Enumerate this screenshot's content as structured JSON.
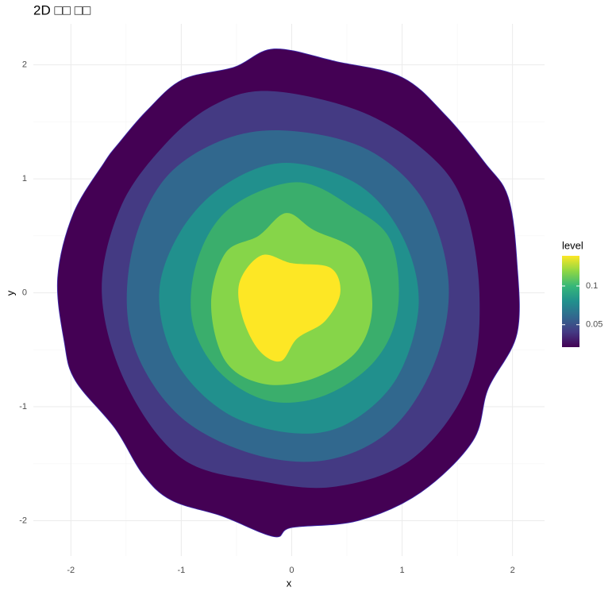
{
  "chart_data": {
    "type": "filled-contour",
    "title": "2D □□ □□",
    "x_label": "x",
    "y_label": "y",
    "xlim": [
      -2.34,
      2.29
    ],
    "ylim": [
      -2.31,
      2.36
    ],
    "xticks": [
      -2,
      -1,
      0,
      1,
      2
    ],
    "yticks": [
      -2,
      -1,
      0,
      1,
      2
    ],
    "minor_xticks": [
      -1.5,
      -0.5,
      0.5,
      1.5
    ],
    "minor_yticks": [
      -1.5,
      -0.5,
      0.5,
      1.5
    ],
    "grid": true,
    "bands": [
      {
        "color": "#440154",
        "x": [
          -0.16,
          0.4,
          1.0,
          1.4,
          1.75,
          1.96,
          2.04,
          2.04,
          1.78,
          1.64,
          1.17,
          0.6,
          0.0,
          -0.16,
          -0.63,
          -1.09,
          -1.35,
          -1.6,
          -1.96,
          -2.06,
          -2.12,
          -1.98,
          -1.7,
          -1.56,
          -1.31,
          -0.99,
          -0.52
        ],
        "y": [
          2.14,
          2.03,
          1.89,
          1.55,
          1.14,
          0.84,
          0.27,
          -0.36,
          -0.84,
          -1.3,
          -1.75,
          -2.0,
          -2.06,
          -2.14,
          -1.96,
          -1.82,
          -1.59,
          -1.19,
          -0.77,
          -0.43,
          0.13,
          0.69,
          1.14,
          1.32,
          1.6,
          1.87,
          1.98
        ]
      },
      {
        "color": "#443a83",
        "x": [
          -0.2,
          0.6,
          1.2,
          1.55,
          1.7,
          1.6,
          1.1,
          0.4,
          -0.3,
          -1.0,
          -1.5,
          -1.72,
          -1.55,
          -1.15,
          -0.7
        ],
        "y": [
          1.77,
          1.6,
          1.25,
          0.8,
          0.0,
          -0.8,
          -1.45,
          -1.7,
          -1.65,
          -1.45,
          -0.8,
          0.0,
          0.75,
          1.3,
          1.65
        ]
      },
      {
        "color": "#31688e",
        "x": [
          0.0,
          0.7,
          1.2,
          1.42,
          1.3,
          0.9,
          0.3,
          -0.4,
          -1.05,
          -1.45,
          -1.45,
          -1.15,
          -0.6
        ],
        "y": [
          1.42,
          1.25,
          0.8,
          0.1,
          -0.6,
          -1.2,
          -1.47,
          -1.4,
          -1.05,
          -0.4,
          0.35,
          1.0,
          1.35
        ]
      },
      {
        "color": "#21908d",
        "x": [
          -0.05,
          0.6,
          1.0,
          1.15,
          0.95,
          0.5,
          0.0,
          -0.6,
          -1.05,
          -1.2,
          -1.0,
          -0.6
        ],
        "y": [
          1.14,
          0.95,
          0.5,
          -0.1,
          -0.75,
          -1.15,
          -1.23,
          -1.05,
          -0.6,
          0.0,
          0.55,
          0.95
        ]
      },
      {
        "color": "#3aae6c",
        "x": [
          0.05,
          0.55,
          0.9,
          0.96,
          0.75,
          0.3,
          -0.2,
          -0.65,
          -0.9,
          -0.85,
          -0.55
        ],
        "y": [
          0.97,
          0.75,
          0.45,
          -0.15,
          -0.6,
          -0.9,
          -0.95,
          -0.7,
          -0.25,
          0.3,
          0.75
        ]
      },
      {
        "color": "#86d549",
        "x": [
          -0.05,
          0.2,
          0.6,
          0.73,
          0.6,
          0.2,
          -0.25,
          -0.6,
          -0.73,
          -0.6,
          -0.3
        ],
        "y": [
          0.7,
          0.55,
          0.35,
          -0.1,
          -0.5,
          -0.75,
          -0.8,
          -0.6,
          -0.1,
          0.35,
          0.5
        ]
      },
      {
        "color": "#fde725",
        "x": [
          -0.27,
          0.0,
          0.35,
          0.44,
          0.3,
          0.05,
          -0.1,
          -0.3,
          -0.45,
          -0.47
        ],
        "y": [
          0.33,
          0.26,
          0.22,
          0.0,
          -0.25,
          -0.4,
          -0.6,
          -0.5,
          -0.2,
          0.1
        ]
      }
    ],
    "legend_title": "level",
    "colorbar_lim": [
      0.021,
      0.139
    ],
    "colorbar_ticks": [
      0.05,
      0.1
    ],
    "colorbar_colors": [
      "#440154",
      "#443a83",
      "#31688e",
      "#21908d",
      "#35b779",
      "#8fd744",
      "#fde725"
    ]
  }
}
